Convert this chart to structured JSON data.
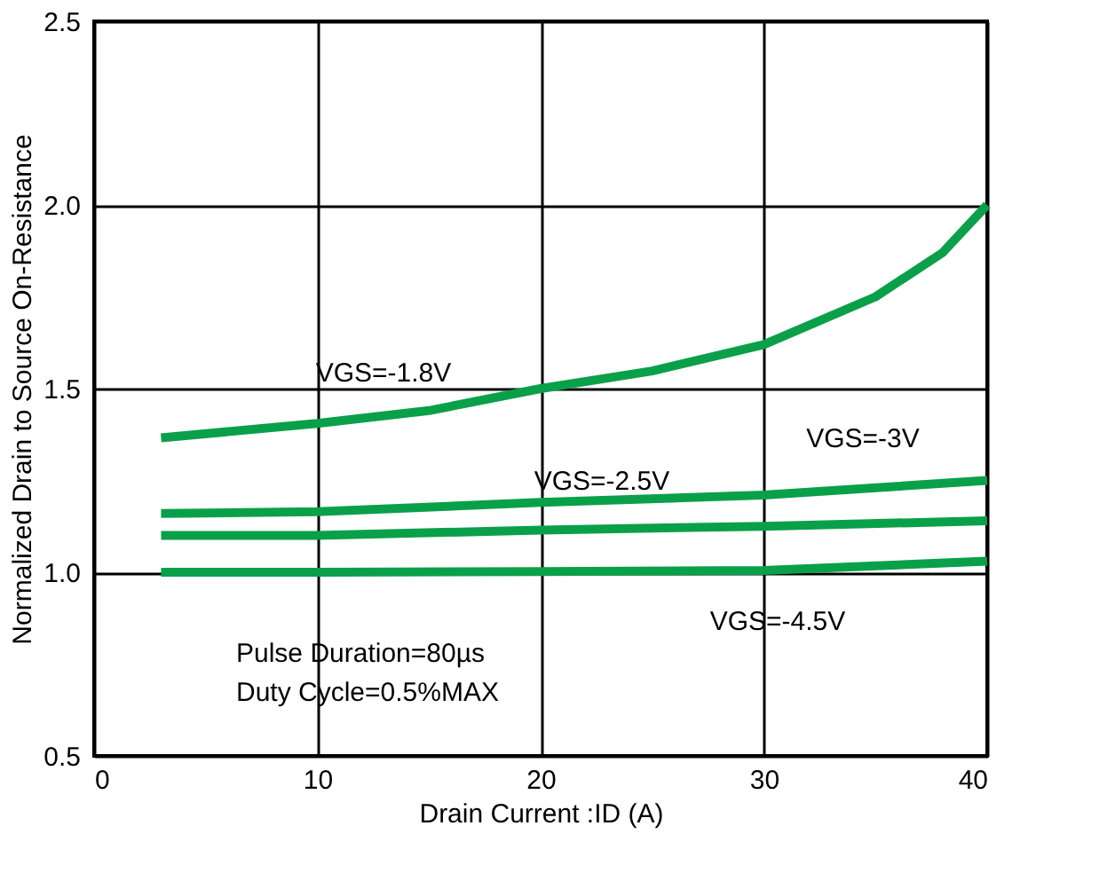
{
  "chart_data": {
    "type": "line",
    "xlabel": "Drain Current :ID (A)",
    "ylabel": "Normalized Drain to Source On-Resistance",
    "xlim": [
      0,
      40
    ],
    "xticks": [
      0,
      10,
      20,
      30,
      40
    ],
    "ylim": [
      0.5,
      2.5
    ],
    "yticks": [
      {
        "value": 0.5,
        "label": "0.5"
      },
      {
        "value": 1,
        "label": "1.0"
      },
      {
        "value": 1.5,
        "label": "1.5"
      },
      {
        "value": 2,
        "label": "2.0"
      },
      {
        "value": 2.5,
        "label": "2.5"
      }
    ],
    "grid": true,
    "legend": false,
    "marker": "none",
    "line_style": "solid",
    "series": [
      {
        "color": "#0aa04a",
        "x": [
          3,
          10,
          15,
          20,
          25,
          30,
          35,
          38,
          40
        ],
        "values": [
          1.366,
          1.405,
          1.44,
          1.5,
          1.548,
          1.62,
          1.75,
          1.87,
          2.0
        ]
      },
      {
        "color": "#0aa04a",
        "x": [
          3,
          10,
          20,
          30,
          40
        ],
        "values": [
          1.16,
          1.165,
          1.19,
          1.21,
          1.25
        ]
      },
      {
        "color": "#0aa04a",
        "x": [
          3,
          10,
          20,
          30,
          40
        ],
        "values": [
          1.1,
          1.1,
          1.115,
          1.125,
          1.14
        ]
      },
      {
        "color": "#0aa04a",
        "x": [
          3,
          10,
          20,
          30,
          40
        ],
        "values": [
          1.0,
          1.0,
          1.002,
          1.005,
          1.03
        ]
      }
    ],
    "annotations": [
      "VGS=-1.8V",
      "VGS=-2.5V",
      "VGS=-3V",
      "VGS=-4.5V",
      "Pulse Duration=80µs",
      "Duty Cycle=0.5%MAX"
    ]
  }
}
